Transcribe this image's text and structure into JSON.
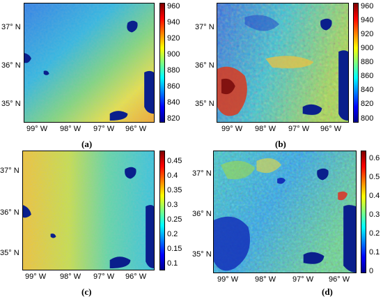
{
  "panels": [
    {
      "id": "a",
      "letter": "(a)",
      "cbar_labels": [
        "960",
        "940",
        "920",
        "900",
        "880",
        "860",
        "840",
        "820"
      ],
      "lat_labels": [
        "37° N",
        "36° N",
        "35° N"
      ],
      "lon_labels": [
        "99° W",
        "98° W",
        "97° W",
        "96° W"
      ]
    },
    {
      "id": "b",
      "letter": "(b)",
      "cbar_labels": [
        "960",
        "940",
        "920",
        "900",
        "880",
        "860",
        "840",
        "820",
        "800"
      ],
      "lat_labels": [
        "37° N",
        "36° N",
        "35° N"
      ],
      "lon_labels": [
        "99° W",
        "98° W",
        "97° W",
        "96° W"
      ]
    },
    {
      "id": "c",
      "letter": "(c)",
      "cbar_labels": [
        "0.45",
        "0.4",
        "0.35",
        "0.3",
        "0.25",
        "0.2",
        "0.15",
        "0.1"
      ],
      "lat_labels": [
        "37° N",
        "36° N",
        "35° N"
      ],
      "lon_labels": [
        "99° W",
        "98° W",
        "97° W",
        "96° W"
      ]
    },
    {
      "id": "d",
      "letter": "(d)",
      "cbar_labels": [
        "0.6",
        "0.5",
        "0.4",
        "0.3",
        "0.2",
        "0.1",
        "0"
      ],
      "lat_labels": [
        "37° N",
        "36° N",
        "35° N"
      ],
      "lon_labels": [
        "99° W",
        "98° W",
        "97° W",
        "96° W"
      ]
    }
  ]
}
